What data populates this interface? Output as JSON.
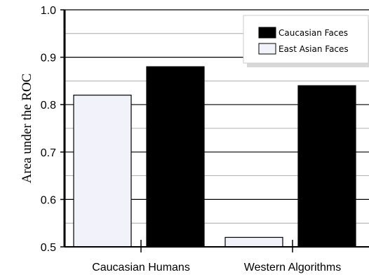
{
  "chart_data": {
    "type": "bar",
    "title": "",
    "xlabel": "",
    "ylabel": "Area under the ROC",
    "ylim": [
      0.5,
      1.0
    ],
    "yticks": [
      "0.5",
      "0.6",
      "0.7",
      "0.8",
      "0.9",
      "1.0"
    ],
    "categories": [
      "Caucasian Humans",
      "Western Algorithms"
    ],
    "series": [
      {
        "name": "East Asian Faces",
        "values": [
          0.82,
          0.52
        ],
        "color": "#f2f2fb"
      },
      {
        "name": "Caucasian Faces",
        "values": [
          0.88,
          0.84
        ],
        "color": "#000000"
      }
    ],
    "grid": true,
    "legend_position": "top-right"
  }
}
